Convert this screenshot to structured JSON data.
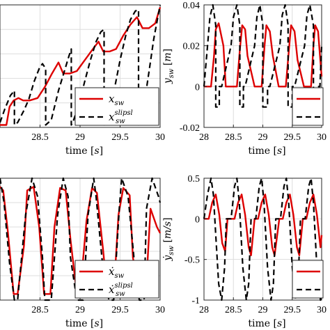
{
  "chart_data": [
    {
      "type": "line",
      "id": "x_sw",
      "xlabel": "time [s]",
      "xlabel_word": "time",
      "xlabel_unit": "s",
      "ylabel": "",
      "xlim": [
        28,
        30
      ],
      "ylim": [
        0,
        1
      ],
      "xticks": [
        "28.5",
        "29",
        "29.5",
        "30"
      ],
      "yticks": [],
      "grid": true,
      "legend": {
        "placement": "bottom-right",
        "entries": [
          {
            "base": "x",
            "sub": "sw",
            "sup": ""
          },
          {
            "base": "x",
            "sub": "sw",
            "sup": "slipsl"
          }
        ]
      },
      "series": [
        {
          "color": "#dd0000",
          "style": "solid",
          "x": [
            28.0,
            28.08,
            28.12,
            28.17,
            28.23,
            28.29,
            28.37,
            28.47,
            28.56,
            28.65,
            28.73,
            28.79,
            28.87,
            28.96,
            29.06,
            29.15,
            29.23,
            29.29,
            29.37,
            29.45,
            29.54,
            29.63,
            29.71,
            29.78,
            29.86,
            29.94,
            30.0
          ],
          "y": [
            0.02,
            0.02,
            0.17,
            0.22,
            0.24,
            0.22,
            0.22,
            0.24,
            0.33,
            0.44,
            0.53,
            0.44,
            0.44,
            0.46,
            0.55,
            0.63,
            0.7,
            0.62,
            0.62,
            0.64,
            0.75,
            0.84,
            0.9,
            0.81,
            0.81,
            0.85,
            0.98
          ]
        },
        {
          "color": "#000000",
          "style": "dashed",
          "x": [
            28.0,
            28.06,
            28.13,
            28.18,
            28.18,
            28.22,
            28.3,
            28.36,
            28.43,
            28.49,
            28.53,
            28.57,
            28.57,
            28.64,
            28.73,
            28.8,
            28.86,
            28.89,
            28.89,
            28.92,
            28.99,
            29.06,
            29.13,
            29.2,
            29.26,
            29.3,
            29.3,
            29.36,
            29.44,
            29.5,
            29.57,
            29.63,
            29.69,
            29.73,
            29.73,
            29.78,
            29.86,
            29.92,
            29.98,
            30.0
          ],
          "y": [
            0.04,
            0.15,
            0.26,
            0.3,
            0.02,
            0.04,
            0.14,
            0.23,
            0.38,
            0.48,
            0.52,
            0.48,
            0.02,
            0.06,
            0.3,
            0.45,
            0.58,
            0.64,
            0.02,
            0.06,
            0.2,
            0.38,
            0.55,
            0.7,
            0.78,
            0.8,
            0.02,
            0.08,
            0.35,
            0.55,
            0.75,
            0.88,
            0.95,
            0.96,
            0.02,
            0.1,
            0.45,
            0.72,
            0.93,
            1.0
          ]
        }
      ]
    },
    {
      "type": "line",
      "id": "y_sw",
      "xlabel": "time [s]",
      "xlabel_word": "time",
      "xlabel_unit": "s",
      "ylabel": "y_sw [m]",
      "ylabel_base": "y",
      "ylabel_sub": "sw",
      "ylabel_unit": "m",
      "xlim": [
        28,
        30
      ],
      "ylim": [
        -0.02,
        0.04
      ],
      "xticks": [
        "28",
        "28.5",
        "29",
        "29.5",
        "30"
      ],
      "yticks": [
        "-0.02",
        "0",
        "0.02",
        "0.04"
      ],
      "ytick_values": [
        -0.02,
        0,
        0.02,
        0.04
      ],
      "grid": true,
      "legend": {
        "placement": "bottom-right",
        "entries": [
          {
            "base": "",
            "sub": "",
            "sup": ""
          },
          {
            "base": "",
            "sub": "",
            "sup": ""
          }
        ]
      },
      "series": [
        {
          "color": "#dd0000",
          "style": "solid",
          "x": [
            28.0,
            28.12,
            28.17,
            28.2,
            28.25,
            28.33,
            28.37,
            28.47,
            28.56,
            28.61,
            28.65,
            28.7,
            28.74,
            28.86,
            28.98,
            29.03,
            29.06,
            29.12,
            29.17,
            29.27,
            29.39,
            29.45,
            29.48,
            29.54,
            29.59,
            29.7,
            29.82,
            29.86,
            29.89,
            29.94,
            29.98,
            30.0
          ],
          "y": [
            0,
            0,
            0.015,
            0.028,
            0.031,
            0.02,
            0,
            0,
            0,
            0.018,
            0.03,
            0.028,
            0.015,
            0,
            0,
            0.02,
            0.03,
            0.027,
            0.015,
            0,
            0,
            0.02,
            0.03,
            0.027,
            0.013,
            0,
            0,
            0.02,
            0.03,
            0.027,
            0.012,
            0.005
          ]
        },
        {
          "color": "#000000",
          "style": "dashed",
          "x": [
            28.0,
            28.06,
            28.1,
            28.15,
            28.2,
            28.2,
            28.26,
            28.26,
            28.3,
            28.46,
            28.5,
            28.56,
            28.61,
            28.61,
            28.67,
            28.67,
            28.7,
            28.86,
            28.9,
            28.95,
            29.0,
            29.0,
            29.08,
            29.08,
            29.12,
            29.29,
            29.33,
            29.38,
            29.43,
            29.43,
            29.5,
            29.5,
            29.54,
            29.71,
            29.75,
            29.8,
            29.86,
            29.86,
            29.93,
            29.93,
            29.97,
            30.0
          ],
          "y": [
            0,
            0.02,
            0.034,
            0.04,
            0.03,
            -0.01,
            -0.01,
            0,
            0,
            0.02,
            0.034,
            0.04,
            0.03,
            -0.01,
            -0.01,
            0,
            0,
            0.02,
            0.034,
            0.04,
            0.03,
            -0.01,
            -0.01,
            0,
            0,
            0.02,
            0.035,
            0.04,
            0.03,
            -0.01,
            -0.01,
            0,
            0,
            0.02,
            0.035,
            0.04,
            0.03,
            -0.01,
            -0.01,
            0,
            0,
            0.02
          ]
        }
      ]
    },
    {
      "type": "line",
      "id": "xdot_sw",
      "xlabel": "time [s]",
      "xlabel_word": "time",
      "xlabel_unit": "s",
      "ylabel": "",
      "xlim": [
        28,
        30
      ],
      "ylim": [
        0,
        1
      ],
      "xticks": [
        "28.5",
        "29",
        "29.5",
        "30"
      ],
      "yticks": [],
      "grid": true,
      "legend": {
        "placement": "bottom-right",
        "entries": [
          {
            "base": "ẋ",
            "sub": "sw",
            "sup": ""
          },
          {
            "base": "ẋ",
            "sub": "sw",
            "sup": "slipsl"
          }
        ]
      },
      "series": [
        {
          "color": "#dd0000",
          "style": "solid",
          "x": [
            28.0,
            28.04,
            28.1,
            28.17,
            28.22,
            28.3,
            28.34,
            28.42,
            28.49,
            28.55,
            28.63,
            28.68,
            28.75,
            28.82,
            28.88,
            28.96,
            29.0,
            29.08,
            29.15,
            29.21,
            29.29,
            29.34,
            29.42,
            29.48,
            29.54,
            29.62,
            29.66,
            29.74,
            29.82,
            29.88,
            29.96,
            30.0
          ],
          "y": [
            0.93,
            0.9,
            0.55,
            0.05,
            0.05,
            0.45,
            0.9,
            0.93,
            0.6,
            0.05,
            0.05,
            0.6,
            0.92,
            0.9,
            0.5,
            0.05,
            0.05,
            0.65,
            0.92,
            0.88,
            0.4,
            0.05,
            0.05,
            0.7,
            0.92,
            0.86,
            0.35,
            0.05,
            0.05,
            0.75,
            0.6,
            0.55
          ]
        },
        {
          "color": "#000000",
          "style": "dashed",
          "x": [
            28.0,
            28.05,
            28.12,
            28.18,
            28.22,
            28.32,
            28.4,
            28.47,
            28.53,
            28.56,
            28.64,
            28.72,
            28.79,
            28.85,
            28.88,
            28.96,
            29.04,
            29.1,
            29.17,
            29.2,
            29.28,
            29.36,
            29.42,
            29.49,
            29.52,
            29.6,
            29.68,
            29.74,
            29.8,
            29.83,
            29.9,
            29.98,
            30.0
          ],
          "y": [
            1.0,
            0.8,
            0.3,
            0.0,
            0.0,
            0.7,
            1.0,
            0.85,
            0.35,
            0.0,
            0.0,
            0.7,
            1.0,
            0.85,
            0.35,
            0.0,
            0.0,
            0.7,
            1.0,
            0.85,
            0.3,
            0.0,
            0.0,
            0.75,
            1.0,
            0.85,
            0.3,
            0.0,
            0.0,
            0.75,
            1.0,
            0.85,
            0.8
          ]
        }
      ]
    },
    {
      "type": "line",
      "id": "ydot_sw",
      "xlabel": "time [s]",
      "xlabel_word": "time",
      "xlabel_unit": "s",
      "ylabel": "ẏ_sw [m/s]",
      "ylabel_base": "ẏ",
      "ylabel_sub": "sw",
      "ylabel_unit": "m/s",
      "xlim": [
        28,
        30
      ],
      "ylim": [
        -1,
        0.5
      ],
      "xticks": [
        "28",
        "28.5",
        "29",
        "29.5",
        "30"
      ],
      "yticks": [
        "-1",
        "-0.5",
        "0",
        "0.5"
      ],
      "ytick_values": [
        -1,
        -0.5,
        0,
        0.5
      ],
      "grid": true,
      "legend": {
        "placement": "bottom-right",
        "entries": [
          {
            "base": "",
            "sub": "",
            "sup": ""
          },
          {
            "base": "",
            "sub": "",
            "sup": ""
          }
        ]
      },
      "series": [
        {
          "color": "#dd0000",
          "style": "solid",
          "x": [
            28.0,
            28.08,
            28.14,
            28.2,
            28.26,
            28.31,
            28.36,
            28.4,
            28.46,
            28.52,
            28.58,
            28.64,
            28.7,
            28.76,
            28.8,
            28.86,
            28.92,
            28.98,
            29.04,
            29.1,
            29.16,
            29.2,
            29.28,
            29.34,
            29.4,
            29.46,
            29.52,
            29.58,
            29.62,
            29.68,
            29.74,
            29.8,
            29.86,
            29.92,
            29.98,
            30.0
          ],
          "y": [
            0,
            0,
            0.2,
            0.3,
            0.05,
            -0.3,
            -0.4,
            0,
            0,
            0,
            0.2,
            0.3,
            0.05,
            -0.35,
            -0.45,
            0,
            0,
            0.2,
            0.3,
            0.05,
            -0.35,
            -0.45,
            0,
            0,
            0.2,
            0.3,
            0.05,
            -0.35,
            -0.45,
            0,
            0,
            0.2,
            0.3,
            0.05,
            -0.35,
            -0.2
          ]
        },
        {
          "color": "#000000",
          "style": "dashed",
          "x": [
            28.0,
            28.06,
            28.12,
            28.16,
            28.2,
            28.25,
            28.3,
            28.35,
            28.38,
            28.46,
            28.52,
            28.56,
            28.6,
            28.66,
            28.72,
            28.76,
            28.8,
            28.88,
            28.94,
            28.98,
            29.02,
            29.08,
            29.14,
            29.18,
            29.22,
            29.3,
            29.36,
            29.4,
            29.44,
            29.5,
            29.56,
            29.6,
            29.64,
            29.72,
            29.78,
            29.82,
            29.86,
            29.92,
            29.98,
            30.0
          ],
          "y": [
            0,
            0.3,
            0.5,
            0.3,
            -0.2,
            -0.8,
            -1.0,
            -0.6,
            0,
            0,
            0.4,
            0.5,
            0.2,
            -0.6,
            -1.0,
            -0.8,
            0,
            0,
            0.4,
            0.5,
            0.2,
            -0.6,
            -1.0,
            -0.8,
            0,
            0,
            0.4,
            0.5,
            0.2,
            -0.6,
            -1.0,
            -0.8,
            0,
            0,
            0.4,
            0.5,
            0.2,
            -0.6,
            -1.0,
            -0.9
          ]
        }
      ]
    }
  ]
}
